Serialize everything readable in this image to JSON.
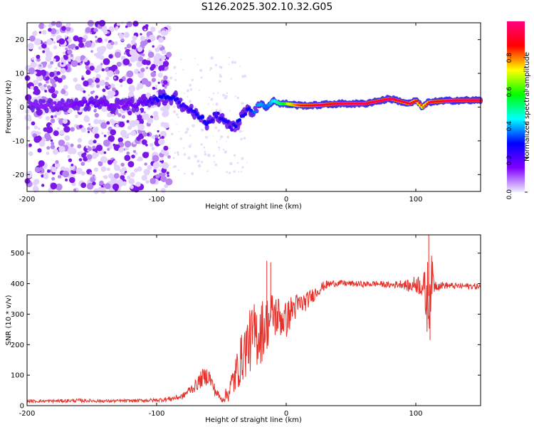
{
  "title": "S126.2025.302.10.32.G05",
  "chart_data": [
    {
      "type": "heatmap",
      "name": "spectrogram",
      "xlabel": "Height of straight line (km)",
      "ylabel": "Frequency (Hz)",
      "xlim": [
        -200,
        150
      ],
      "ylim": [
        -25,
        25
      ],
      "xticks": [
        -200,
        -100,
        0,
        100
      ],
      "xtick_labels": [
        "-200",
        "-100",
        "0",
        "100"
      ],
      "yticks": [
        -20,
        -10,
        0,
        10,
        20
      ],
      "ytick_labels": [
        "-20",
        "-10",
        "0",
        "10",
        "20"
      ],
      "colorbar": {
        "label": "Normalized spectral amplitude",
        "range": [
          0,
          1
        ],
        "ticks": [
          0.0,
          0.2,
          0.4,
          0.6,
          0.8
        ],
        "tick_labels": [
          "0.0",
          "0.2",
          "0.4",
          "0.6",
          "0.8"
        ],
        "colors": [
          "#f0f0ff",
          "#8000ff",
          "#0000ff",
          "#00ffff",
          "#00ff00",
          "#ffff00",
          "#ff0000",
          "#ff0080"
        ]
      },
      "ridge": {
        "x": [
          -170,
          -150,
          -130,
          -110,
          -95,
          -85,
          -78,
          -70,
          -65,
          -60,
          -55,
          -50,
          -45,
          -42,
          -38,
          -34,
          -30,
          -25,
          -20,
          -15,
          -10,
          -5,
          0,
          10,
          20,
          40,
          60,
          80,
          95,
          100,
          105,
          110,
          130,
          150
        ],
        "frequency_hz": [
          0.5,
          1,
          0.5,
          1,
          3,
          2.5,
          0,
          -2,
          -3,
          -5,
          -2,
          -3,
          -5,
          -6,
          -5,
          -3,
          -1,
          -1,
          1,
          0,
          2,
          1,
          1,
          0.5,
          0.5,
          1,
          1,
          2.5,
          1,
          2,
          0,
          1.5,
          2,
          2
        ],
        "amplitude": [
          0.15,
          0.2,
          0.15,
          0.2,
          0.35,
          0.3,
          0.25,
          0.3,
          0.35,
          0.3,
          0.25,
          0.3,
          0.3,
          0.25,
          0.35,
          0.3,
          0.3,
          0.4,
          0.45,
          0.4,
          0.5,
          0.6,
          0.7,
          0.85,
          0.9,
          0.95,
          0.95,
          0.95,
          0.9,
          0.9,
          0.8,
          0.9,
          0.95,
          0.95
        ]
      }
    },
    {
      "type": "line",
      "name": "snr",
      "xlabel": "Height of straight line (km)",
      "ylabel": "SNR (10 * v/v)",
      "xlim": [
        -200,
        150
      ],
      "ylim": [
        0,
        560
      ],
      "xticks": [
        -200,
        -100,
        0,
        100
      ],
      "xtick_labels": [
        "-200",
        "-100",
        "0",
        "100"
      ],
      "yticks": [
        0,
        100,
        200,
        300,
        400,
        500
      ],
      "ytick_labels": [
        "0",
        "100",
        "200",
        "300",
        "400",
        "500"
      ],
      "series": [
        {
          "name": "SNR",
          "color": "#e8302a",
          "x": [
            -200,
            -180,
            -160,
            -140,
            -120,
            -100,
            -90,
            -80,
            -75,
            -70,
            -65,
            -60,
            -55,
            -50,
            -45,
            -40,
            -35,
            -30,
            -25,
            -20,
            -15,
            -10,
            -5,
            0,
            5,
            10,
            15,
            20,
            25,
            30,
            35,
            40,
            50,
            60,
            70,
            80,
            90,
            95,
            100,
            105,
            108,
            110,
            112,
            115,
            120,
            130,
            140,
            150
          ],
          "y": [
            15,
            15,
            17,
            15,
            16,
            18,
            22,
            30,
            50,
            65,
            90,
            100,
            50,
            20,
            40,
            90,
            150,
            200,
            230,
            240,
            270,
            300,
            290,
            280,
            320,
            330,
            340,
            360,
            380,
            395,
            400,
            402,
            400,
            398,
            400,
            395,
            400,
            390,
            400,
            395,
            350,
            360,
            420,
            395,
            395,
            392,
            392,
            390
          ],
          "noise_amplitude": [
            5,
            5,
            6,
            5,
            5,
            6,
            8,
            10,
            15,
            20,
            30,
            30,
            20,
            10,
            30,
            60,
            80,
            100,
            110,
            110,
            90,
            80,
            70,
            60,
            50,
            40,
            30,
            25,
            20,
            15,
            12,
            10,
            10,
            10,
            10,
            10,
            15,
            20,
            30,
            40,
            100,
            150,
            80,
            20,
            12,
            10,
            10,
            10
          ]
        }
      ],
      "annotations": [
        {
          "x": -15,
          "y": 475
        },
        {
          "x": -12,
          "y": 470
        },
        {
          "x": 110,
          "y": 560
        },
        {
          "x": 111,
          "y": 215
        }
      ]
    }
  ]
}
